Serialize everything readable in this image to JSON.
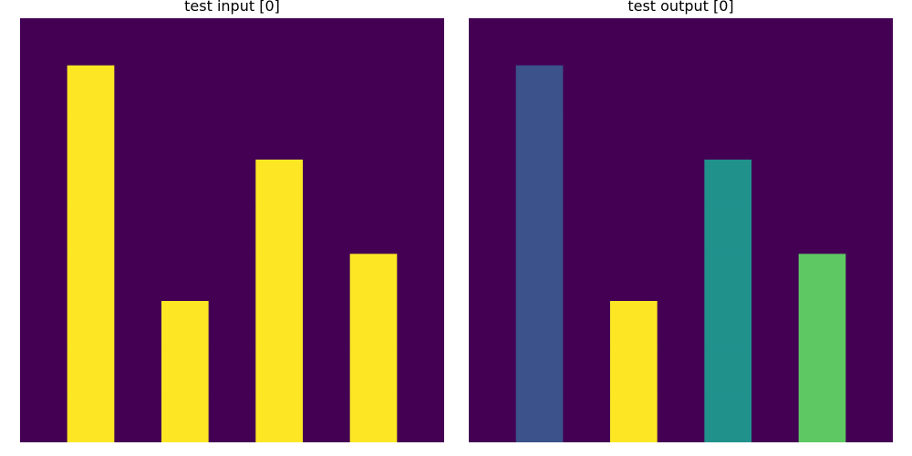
{
  "panels": [
    {
      "title": "test input [0]",
      "grid": [
        [
          0,
          0,
          0,
          0,
          0,
          0,
          0,
          0,
          0
        ],
        [
          0,
          1,
          0,
          0,
          0,
          0,
          0,
          0,
          0
        ],
        [
          0,
          1,
          0,
          0,
          0,
          0,
          0,
          0,
          0
        ],
        [
          0,
          1,
          0,
          0,
          0,
          1,
          0,
          0,
          0
        ],
        [
          0,
          1,
          0,
          0,
          0,
          1,
          0,
          0,
          0
        ],
        [
          0,
          1,
          0,
          0,
          0,
          1,
          0,
          1,
          0
        ],
        [
          0,
          1,
          0,
          1,
          0,
          1,
          0,
          1,
          0
        ],
        [
          0,
          1,
          0,
          1,
          0,
          1,
          0,
          1,
          0
        ],
        [
          0,
          1,
          0,
          1,
          0,
          1,
          0,
          1,
          0
        ]
      ]
    },
    {
      "title": "test output [0]",
      "grid": [
        [
          0,
          0,
          0,
          0,
          0,
          0,
          0,
          0,
          0
        ],
        [
          0,
          2,
          0,
          0,
          0,
          0,
          0,
          0,
          0
        ],
        [
          0,
          2,
          0,
          0,
          0,
          0,
          0,
          0,
          0
        ],
        [
          0,
          2,
          0,
          0,
          0,
          3,
          0,
          0,
          0
        ],
        [
          0,
          2,
          0,
          0,
          0,
          3,
          0,
          0,
          0
        ],
        [
          0,
          2,
          0,
          0,
          0,
          3,
          0,
          4,
          0
        ],
        [
          0,
          2,
          0,
          1,
          0,
          3,
          0,
          4,
          0
        ],
        [
          0,
          2,
          0,
          1,
          0,
          3,
          0,
          4,
          0
        ],
        [
          0,
          2,
          0,
          1,
          0,
          3,
          0,
          4,
          0
        ]
      ]
    }
  ],
  "palette": {
    "0": "#440154",
    "1": "#fde725",
    "2": "#3b528b",
    "3": "#21918c",
    "4": "#5ec962"
  }
}
